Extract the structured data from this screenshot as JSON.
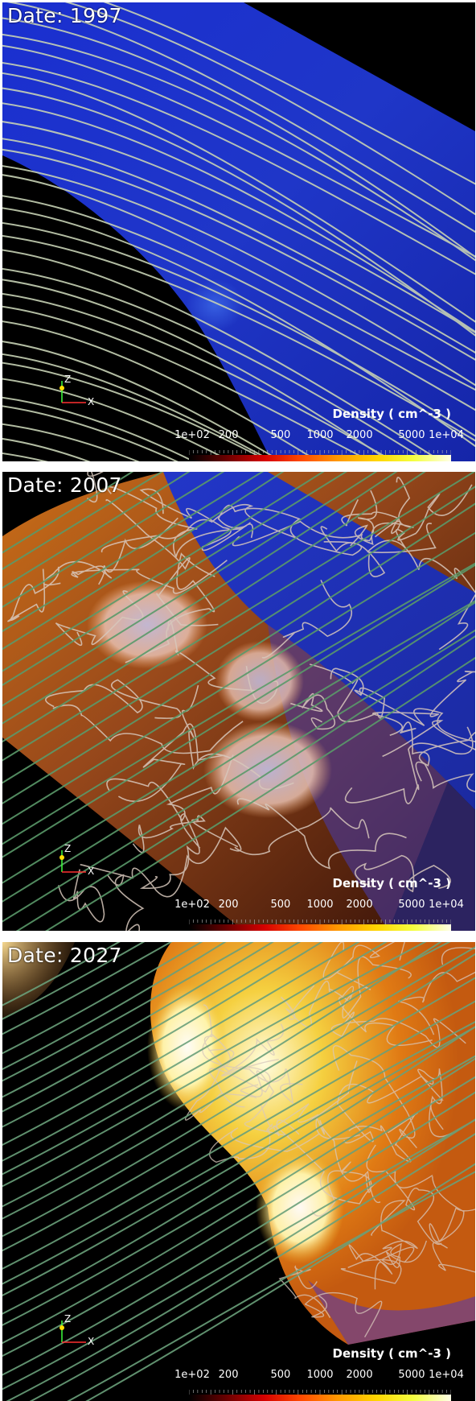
{
  "panels": [
    {
      "date_label": "Date: 1997",
      "scene": "blue-shell"
    },
    {
      "date_label": "Date: 2007",
      "scene": "mixed"
    },
    {
      "date_label": "Date: 2027",
      "scene": "hot"
    }
  ],
  "colorbar": {
    "title": "Density ( cm^-3 )",
    "ticks": [
      "1e+02",
      "200",
      "500",
      "1000",
      "2000",
      "5000",
      "1e+04"
    ],
    "tick_values": [
      100,
      200,
      500,
      1000,
      2000,
      5000,
      10000
    ],
    "range": [
      100,
      10000
    ],
    "scale": "log",
    "colors": [
      "#000000",
      "#6a0000",
      "#d40000",
      "#ff4a00",
      "#ff9a00",
      "#ffd400",
      "#f4ff40",
      "#ffffe8"
    ]
  },
  "axes_widget": {
    "z_label": "Z",
    "x_label": "X",
    "z_color": "#3cff3c",
    "x_color": "#ff3030",
    "origin_color": "#ffe000"
  }
}
